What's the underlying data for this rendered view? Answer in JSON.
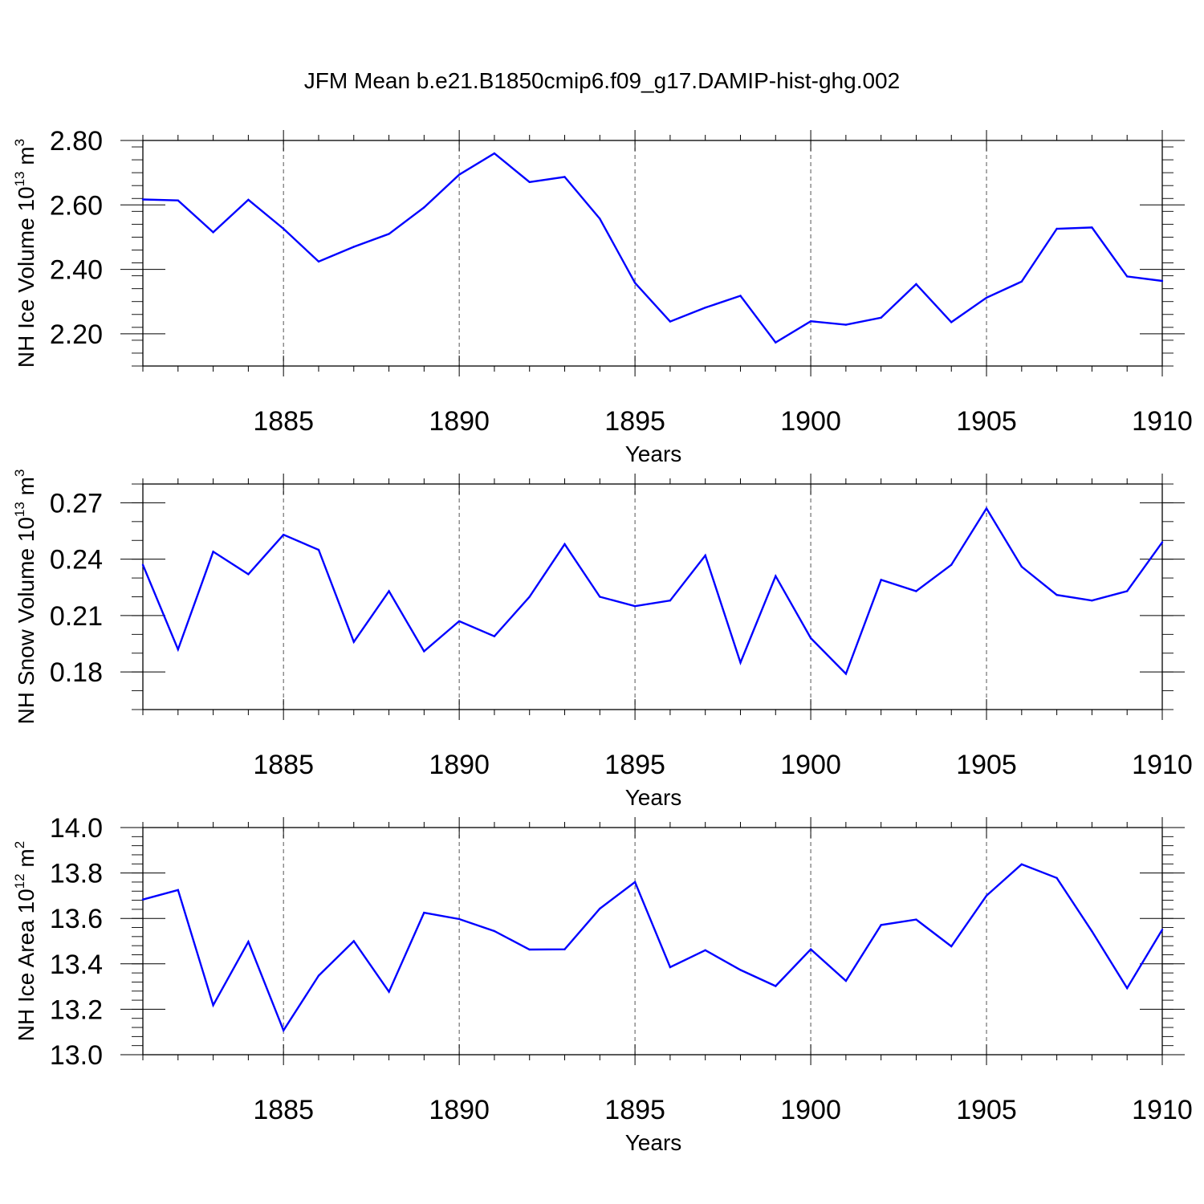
{
  "title": "JFM Mean b.e21.B1850cmip6.f09_g17.DAMIP-hist-ghg.002",
  "colors": {
    "line": "#0000ff",
    "axis": "#000000",
    "grid": "#555555"
  },
  "chart_data": [
    {
      "type": "line",
      "ylabel": "NH Ice Volume 10",
      "ylabel_sup": "13",
      "ylabel_unit": " m",
      "ylabel_unit_sup": "3",
      "xlabel": "Years",
      "xlim": [
        1881,
        1910
      ],
      "ylim": [
        2.1,
        2.8
      ],
      "yticks": [
        2.2,
        2.4,
        2.6,
        2.8
      ],
      "ytick_labels": [
        "2.20",
        "2.40",
        "2.60",
        "2.80"
      ],
      "yminor_step": 0.04,
      "xticks": [
        1885,
        1890,
        1895,
        1900,
        1905,
        1910
      ],
      "xtick_labels": [
        "1885",
        "1890",
        "1895",
        "1900",
        "1905",
        "1910"
      ],
      "grid": "vertical-dashed",
      "x": [
        1881,
        1882,
        1883,
        1884,
        1885,
        1886,
        1887,
        1888,
        1889,
        1890,
        1891,
        1892,
        1893,
        1894,
        1895,
        1896,
        1897,
        1898,
        1899,
        1900,
        1901,
        1902,
        1903,
        1904,
        1905,
        1906,
        1907,
        1908,
        1909,
        1910
      ],
      "values": [
        2.617,
        2.614,
        2.515,
        2.616,
        2.526,
        2.424,
        2.47,
        2.51,
        2.592,
        2.694,
        2.76,
        2.671,
        2.687,
        2.557,
        2.358,
        2.238,
        2.281,
        2.318,
        2.173,
        2.239,
        2.228,
        2.25,
        2.354,
        2.236,
        2.312,
        2.362,
        2.526,
        2.53,
        2.378,
        2.364
      ]
    },
    {
      "type": "line",
      "ylabel": "NH Snow Volume 10",
      "ylabel_sup": "13",
      "ylabel_unit": " m",
      "ylabel_unit_sup": "3",
      "xlabel": "Years",
      "xlim": [
        1881,
        1910
      ],
      "ylim": [
        0.16,
        0.28
      ],
      "yticks": [
        0.18,
        0.21,
        0.24,
        0.27
      ],
      "ytick_labels": [
        "0.18",
        "0.21",
        "0.24",
        "0.27"
      ],
      "yminor_step": 0.01,
      "xticks": [
        1885,
        1890,
        1895,
        1900,
        1905,
        1910
      ],
      "xtick_labels": [
        "1885",
        "1890",
        "1895",
        "1900",
        "1905",
        "1910"
      ],
      "grid": "vertical-dashed",
      "x": [
        1881,
        1882,
        1883,
        1884,
        1885,
        1886,
        1887,
        1888,
        1889,
        1890,
        1891,
        1892,
        1893,
        1894,
        1895,
        1896,
        1897,
        1898,
        1899,
        1900,
        1901,
        1902,
        1903,
        1904,
        1905,
        1906,
        1907,
        1908,
        1909,
        1910
      ],
      "values": [
        0.237,
        0.192,
        0.244,
        0.232,
        0.253,
        0.245,
        0.196,
        0.223,
        0.191,
        0.207,
        0.199,
        0.22,
        0.248,
        0.22,
        0.215,
        0.218,
        0.242,
        0.185,
        0.231,
        0.198,
        0.179,
        0.229,
        0.223,
        0.237,
        0.267,
        0.236,
        0.221,
        0.218,
        0.223,
        0.249
      ]
    },
    {
      "type": "line",
      "ylabel": "NH Ice Area 10",
      "ylabel_sup": "12",
      "ylabel_unit": " m",
      "ylabel_unit_sup": "2",
      "xlabel": "Years",
      "xlim": [
        1881,
        1910
      ],
      "ylim": [
        13.0,
        14.0
      ],
      "yticks": [
        13.0,
        13.2,
        13.4,
        13.6,
        13.8,
        14.0
      ],
      "ytick_labels": [
        "13.0",
        "13.2",
        "13.4",
        "13.6",
        "13.8",
        "14.0"
      ],
      "yminor_step": 0.04,
      "xticks": [
        1885,
        1890,
        1895,
        1900,
        1905,
        1910
      ],
      "xtick_labels": [
        "1885",
        "1890",
        "1895",
        "1900",
        "1905",
        "1910"
      ],
      "grid": "vertical-dashed",
      "x": [
        1881,
        1882,
        1883,
        1884,
        1885,
        1886,
        1887,
        1888,
        1889,
        1890,
        1891,
        1892,
        1893,
        1894,
        1895,
        1896,
        1897,
        1898,
        1899,
        1900,
        1901,
        1902,
        1903,
        1904,
        1905,
        1906,
        1907,
        1908,
        1909,
        1910
      ],
      "values": [
        13.683,
        13.725,
        13.218,
        13.497,
        13.107,
        13.348,
        13.5,
        13.277,
        13.625,
        13.597,
        13.544,
        13.463,
        13.464,
        13.643,
        13.76,
        13.385,
        13.46,
        13.373,
        13.302,
        13.464,
        13.325,
        13.571,
        13.595,
        13.477,
        13.7,
        13.838,
        13.778,
        13.543,
        13.293,
        13.55
      ]
    }
  ]
}
